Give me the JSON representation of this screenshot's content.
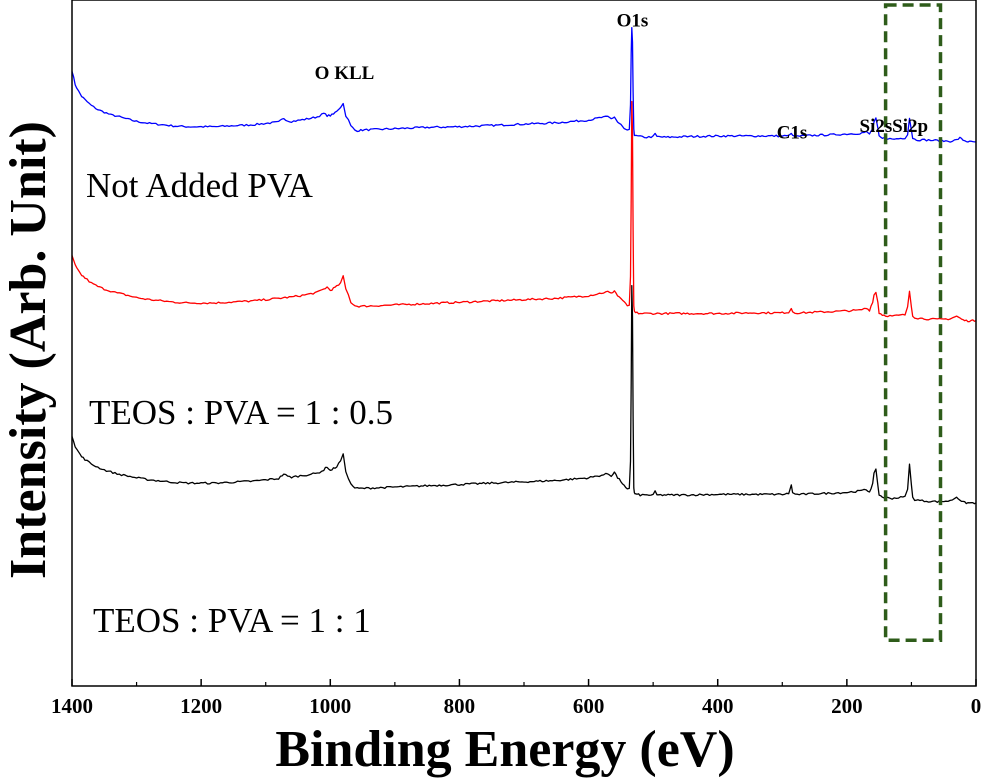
{
  "chart_data": {
    "type": "line",
    "title": "",
    "xlabel": "Binding Energy (eV)",
    "ylabel": "Intensity (Arb. Unit)",
    "xlim": [
      1400,
      0
    ],
    "ylim": [
      0,
      100
    ],
    "x_reversed": true,
    "grid": false,
    "xticks": [
      "1400",
      "1200",
      "1000",
      "800",
      "600",
      "400",
      "200",
      "0"
    ],
    "xtick_values": [
      1400,
      1200,
      1000,
      800,
      600,
      400,
      200,
      0
    ],
    "peak_labels": [
      {
        "text": "O KLL",
        "x": 978,
        "y": 88
      },
      {
        "text": "O1s",
        "x": 532,
        "y": 96
      },
      {
        "text": "C1s",
        "x": 285,
        "y": 79
      },
      {
        "text": "Si2s",
        "x": 155,
        "y": 80
      },
      {
        "text": "Si2p",
        "x": 102,
        "y": 80
      }
    ],
    "highlight_box": {
      "x_range": [
        140,
        55
      ],
      "y_range": [
        3,
        100
      ],
      "color": "#2e5c1a",
      "style": "dashed"
    },
    "series": [
      {
        "name": "Not Added PVA",
        "color": "#0000ff",
        "x": [
          1400,
          1395,
          1390,
          1385,
          1380,
          1370,
          1360,
          1350,
          1340,
          1330,
          1320,
          1300,
          1280,
          1260,
          1240,
          1220,
          1200,
          1180,
          1160,
          1140,
          1120,
          1100,
          1080,
          1072,
          1066,
          1060,
          1040,
          1020,
          1010,
          1005,
          1000,
          995,
          990,
          984,
          980,
          976,
          972,
          968,
          962,
          958,
          950,
          900,
          850,
          800,
          750,
          700,
          650,
          600,
          580,
          570,
          565,
          560,
          555,
          550,
          545,
          540,
          537,
          535,
          534,
          533,
          532,
          531,
          530,
          529,
          528,
          527,
          525,
          520,
          510,
          500,
          497,
          494,
          480,
          450,
          400,
          350,
          300,
          290,
          286,
          284,
          280,
          270,
          250,
          220,
          200,
          180,
          170,
          165,
          160,
          158,
          155,
          152,
          150,
          145,
          140,
          130,
          120,
          110,
          106,
          103,
          100,
          98,
          95,
          90,
          80,
          60,
          40,
          30,
          25,
          20,
          15,
          10,
          5,
          0
        ],
        "y": [
          89.3,
          87.2,
          86.2,
          85.4,
          84.9,
          84.0,
          83.4,
          83.0,
          82.6,
          82.4,
          82.1,
          81.6,
          81.3,
          81.1,
          80.9,
          80.8,
          80.8,
          80.8,
          80.9,
          81.0,
          81.1,
          81.3,
          81.5,
          82.1,
          81.7,
          81.6,
          81.9,
          82.3,
          82.8,
          82.5,
          82.5,
          82.7,
          83.2,
          83.8,
          84.3,
          82.5,
          81.8,
          80.9,
          80.3,
          80.2,
          80.3,
          80.5,
          80.7,
          80.8,
          81.0,
          81.2,
          81.4,
          81.8,
          82.2,
          82.3,
          82.0,
          82.3,
          81.5,
          81.1,
          80.5,
          80.2,
          80.3,
          84.0,
          92.0,
          95.8,
          93.5,
          86.0,
          80.5,
          79.6,
          79.5,
          79.4,
          79.4,
          79.3,
          79.2,
          79.3,
          79.7,
          79.3,
          79.2,
          79.3,
          79.4,
          79.4,
          79.4,
          79.4,
          79.9,
          79.4,
          79.3,
          79.4,
          79.5,
          79.6,
          79.7,
          79.8,
          80.0,
          79.7,
          80.5,
          81.5,
          82.0,
          80.5,
          79.3,
          79.0,
          79.1,
          78.9,
          79.0,
          79.1,
          79.7,
          82.1,
          80.3,
          79.1,
          78.9,
          78.8,
          78.8,
          78.7,
          78.6,
          78.8,
          79.1,
          78.8,
          78.6,
          78.5,
          78.5,
          78.5
        ]
      },
      {
        "name": "TEOS : PVA = 1 : 0.5",
        "color": "#ff0000",
        "x": [
          1400,
          1395,
          1390,
          1385,
          1380,
          1370,
          1360,
          1350,
          1340,
          1330,
          1320,
          1300,
          1280,
          1260,
          1240,
          1220,
          1200,
          1180,
          1160,
          1140,
          1120,
          1100,
          1080,
          1060,
          1040,
          1020,
          1010,
          1005,
          1000,
          995,
          990,
          984,
          980,
          976,
          972,
          968,
          962,
          958,
          950,
          900,
          850,
          800,
          750,
          700,
          650,
          600,
          580,
          570,
          565,
          560,
          555,
          550,
          545,
          540,
          537,
          535,
          534,
          533,
          532,
          531,
          530,
          529,
          528,
          527,
          525,
          520,
          510,
          500,
          480,
          450,
          400,
          350,
          300,
          290,
          286,
          284,
          280,
          270,
          250,
          220,
          200,
          180,
          170,
          165,
          160,
          158,
          155,
          152,
          150,
          145,
          140,
          130,
          120,
          110,
          106,
          103,
          100,
          98,
          95,
          90,
          80,
          60,
          40,
          30,
          25,
          20,
          15,
          10,
          5,
          0
        ],
        "y": [
          61.2,
          59.8,
          58.9,
          58.3,
          57.9,
          57.1,
          56.6,
          56.2,
          55.9,
          55.6,
          55.4,
          54.9,
          54.6,
          54.4,
          54.2,
          54.1,
          54.1,
          54.1,
          54.2,
          54.3,
          54.4,
          54.6,
          54.8,
          55.0,
          55.3,
          55.7,
          56.2,
          56.5,
          56.0,
          56.3,
          56.6,
          57.1,
          58.1,
          56.2,
          55.3,
          54.2,
          53.7,
          53.6,
          53.6,
          53.8,
          54.0,
          54.2,
          54.4,
          54.6,
          54.8,
          55.2,
          55.6,
          55.8,
          55.5,
          56.0,
          55.2,
          54.8,
          54.2,
          53.7,
          53.8,
          58.0,
          70.0,
          84.5,
          80.0,
          65.0,
          53.5,
          52.8,
          52.7,
          52.6,
          52.6,
          52.5,
          52.5,
          52.5,
          52.5,
          52.5,
          52.5,
          52.6,
          52.6,
          52.7,
          53.3,
          52.8,
          52.6,
          52.6,
          52.7,
          52.8,
          52.9,
          53.0,
          53.3,
          53.0,
          54.3,
          55.3,
          55.7,
          54.2,
          52.6,
          52.3,
          52.2,
          52.1,
          52.2,
          52.3,
          53.4,
          55.9,
          53.5,
          52.2,
          51.9,
          51.8,
          51.7,
          51.6,
          51.7,
          52.1,
          51.8,
          51.5,
          51.4,
          51.4,
          51.4,
          51.4
        ]
      },
      {
        "name": "TEOS : PVA = 1 : 1",
        "color": "#000000",
        "x": [
          1400,
          1395,
          1390,
          1385,
          1380,
          1370,
          1360,
          1350,
          1340,
          1330,
          1320,
          1300,
          1280,
          1260,
          1240,
          1220,
          1200,
          1180,
          1160,
          1140,
          1120,
          1100,
          1080,
          1072,
          1066,
          1060,
          1040,
          1020,
          1010,
          1005,
          1000,
          995,
          990,
          984,
          980,
          976,
          972,
          968,
          962,
          958,
          950,
          900,
          850,
          800,
          750,
          700,
          650,
          600,
          580,
          570,
          565,
          560,
          555,
          550,
          545,
          540,
          537,
          535,
          534,
          533,
          532,
          531,
          530,
          529,
          528,
          527,
          525,
          520,
          510,
          500,
          497,
          494,
          480,
          450,
          400,
          350,
          300,
          290,
          286,
          284,
          280,
          270,
          250,
          220,
          200,
          180,
          170,
          165,
          160,
          158,
          155,
          152,
          150,
          145,
          140,
          130,
          120,
          110,
          106,
          103,
          100,
          98,
          95,
          90,
          80,
          60,
          40,
          30,
          25,
          20,
          15,
          10,
          5,
          0
        ],
        "y": [
          34.0,
          32.4,
          31.5,
          30.8,
          30.4,
          29.7,
          29.2,
          28.8,
          28.5,
          28.2,
          28.0,
          27.6,
          27.3,
          27.1,
          26.9,
          26.8,
          26.8,
          26.8,
          26.9,
          27.0,
          27.1,
          27.3,
          27.5,
          28.2,
          27.8,
          27.7,
          28.0,
          28.3,
          28.8,
          29.3,
          28.7,
          29.0,
          29.3,
          30.2,
          31.1,
          28.6,
          27.6,
          26.6,
          26.1,
          26.0,
          26.0,
          26.2,
          26.4,
          26.6,
          26.8,
          27.0,
          27.2,
          27.6,
          28.0,
          28.2,
          27.9,
          28.5,
          27.6,
          27.1,
          26.4,
          25.8,
          25.9,
          30.0,
          42.0,
          56.8,
          52.0,
          37.0,
          26.0,
          25.3,
          25.2,
          25.1,
          25.1,
          25.0,
          25.0,
          25.0,
          25.5,
          25.0,
          25.0,
          25.0,
          25.1,
          25.1,
          25.1,
          25.2,
          26.6,
          25.3,
          25.1,
          25.1,
          25.2,
          25.3,
          25.4,
          25.6,
          25.8,
          25.5,
          26.7,
          28.2,
          28.8,
          26.5,
          25.0,
          24.7,
          24.6,
          24.5,
          24.6,
          24.7,
          26.0,
          29.6,
          26.5,
          24.6,
          24.3,
          24.2,
          24.1,
          24.0,
          24.1,
          24.7,
          24.3,
          23.9,
          23.8,
          23.8,
          23.8,
          23.8
        ]
      }
    ]
  }
}
